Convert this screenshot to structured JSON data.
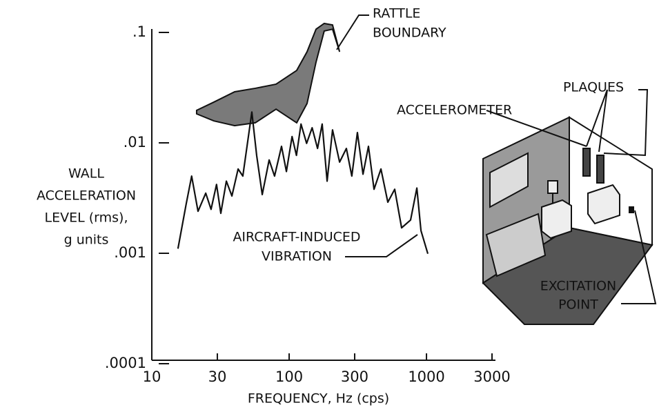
{
  "chart_data": {
    "type": "line",
    "x_label": "FREQUENCY, Hz (cps)",
    "y_label": [
      "WALL",
      "ACCELERATION",
      "LEVEL (rms),",
      "g units"
    ],
    "xlog": true,
    "ylog": true,
    "xlim": [
      10,
      3000
    ],
    "ylim": [
      0.0001,
      0.1
    ],
    "xticks": [
      10,
      30,
      100,
      300,
      1000,
      3000
    ],
    "yticks": [
      {
        "value": 0.1,
        "label": ".1"
      },
      {
        "value": 0.01,
        "label": ".01"
      },
      {
        "value": 0.001,
        "label": ".001"
      },
      {
        "value": 0.0001,
        "label": ".0001"
      }
    ],
    "series": [
      {
        "name": [
          "AIRCRAFT-INDUCED",
          "VIBRATION"
        ],
        "color": "#111111",
        "x": [
          15.5,
          17.8,
          19.5,
          21.7,
          24.7,
          27,
          29.6,
          31.8,
          34.9,
          38.3,
          42.5,
          46,
          53.5,
          58,
          63.7,
          71.5,
          78.3,
          88,
          95.5,
          105,
          113,
          122,
          134,
          147,
          161,
          174,
          189,
          207,
          233,
          261,
          286,
          314,
          345,
          378,
          415,
          466,
          523,
          587,
          659,
          766,
          851,
          912,
          1023
        ],
        "values": [
          0.0011,
          0.0028,
          0.005,
          0.0024,
          0.0035,
          0.0025,
          0.0042,
          0.0023,
          0.0045,
          0.0033,
          0.0058,
          0.005,
          0.019,
          0.0077,
          0.0034,
          0.007,
          0.005,
          0.0093,
          0.0055,
          0.0114,
          0.0077,
          0.0148,
          0.0099,
          0.0137,
          0.0089,
          0.0148,
          0.0045,
          0.0131,
          0.0067,
          0.0089,
          0.005,
          0.0124,
          0.0052,
          0.0093,
          0.0038,
          0.0058,
          0.0029,
          0.0038,
          0.0017,
          0.002,
          0.0039,
          0.0016,
          0.00099
        ]
      }
    ],
    "bands": [
      {
        "name": [
          "RATTLE",
          "BOUNDARY"
        ],
        "color": "#7a7a7a",
        "x": [
          21.2,
          28.3,
          40.1,
          56.7,
          80.3,
          113.5,
          135,
          157,
          180,
          207,
          233
        ],
        "lower": [
          0.0183,
          0.0158,
          0.0143,
          0.0152,
          0.0202,
          0.0152,
          0.0227,
          0.0539,
          0.103,
          0.107,
          0.0668
        ],
        "upper": [
          0.0197,
          0.0234,
          0.029,
          0.0312,
          0.034,
          0.0453,
          0.0668,
          0.107,
          0.1206,
          0.117,
          0.0668
        ]
      }
    ]
  },
  "illustration": {
    "plaques": "PLAQUES",
    "accelerometer": "ACCELEROMETER",
    "excitation": [
      "EXCITATION",
      "POINT"
    ]
  }
}
